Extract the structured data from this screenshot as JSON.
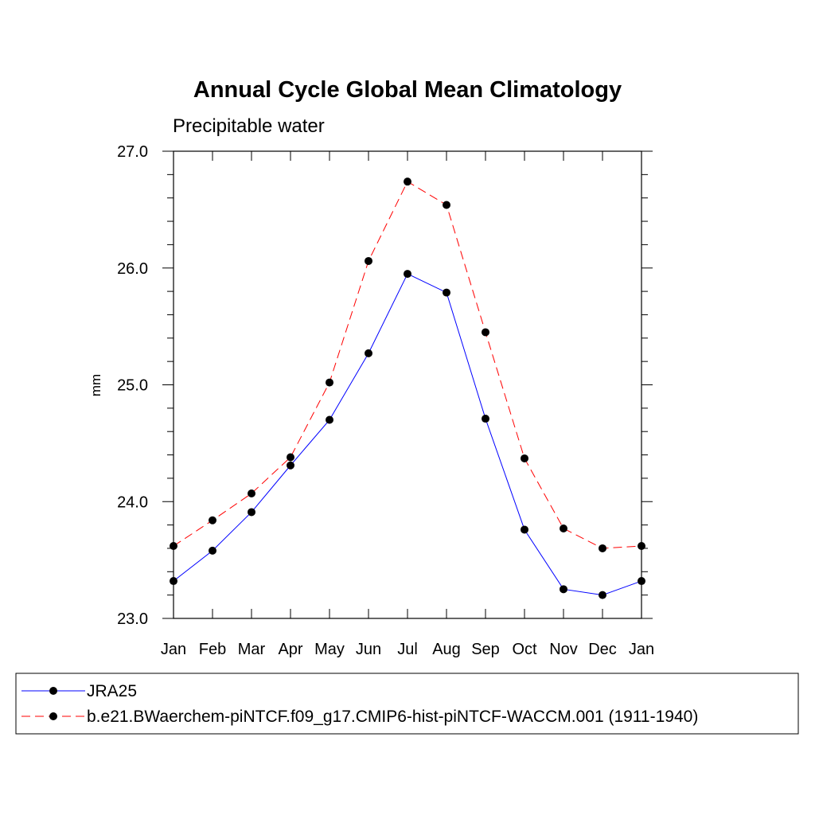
{
  "chart_data": {
    "type": "line",
    "title": "Annual Cycle Global Mean Climatology",
    "subtitle": "Precipitable water",
    "xlabel": "",
    "ylabel": "mm",
    "categories": [
      "Jan",
      "Feb",
      "Mar",
      "Apr",
      "May",
      "Jun",
      "Jul",
      "Aug",
      "Sep",
      "Oct",
      "Nov",
      "Dec",
      "Jan"
    ],
    "ylim": [
      23.0,
      27.0
    ],
    "yticks": [
      "23.0",
      "24.0",
      "25.0",
      "26.0",
      "27.0"
    ],
    "grid": false,
    "legend_position": "bottom",
    "series": [
      {
        "name": "JRA25",
        "color": "#0000ff",
        "line_style": "solid",
        "marker": "filled-circle",
        "values": [
          23.32,
          23.58,
          23.91,
          24.31,
          24.7,
          25.27,
          25.95,
          25.79,
          24.71,
          23.76,
          23.25,
          23.2,
          23.32
        ]
      },
      {
        "name": "b.e21.BWaerchem-piNTCF.f09_g17.CMIP6-hist-piNTCF-WACCM.001 (1911-1940)",
        "color": "#ff0000",
        "line_style": "dashed",
        "marker": "filled-circle",
        "values": [
          23.62,
          23.84,
          24.07,
          24.38,
          25.02,
          26.06,
          26.74,
          26.54,
          25.45,
          24.37,
          23.77,
          23.6,
          23.62
        ]
      }
    ]
  }
}
